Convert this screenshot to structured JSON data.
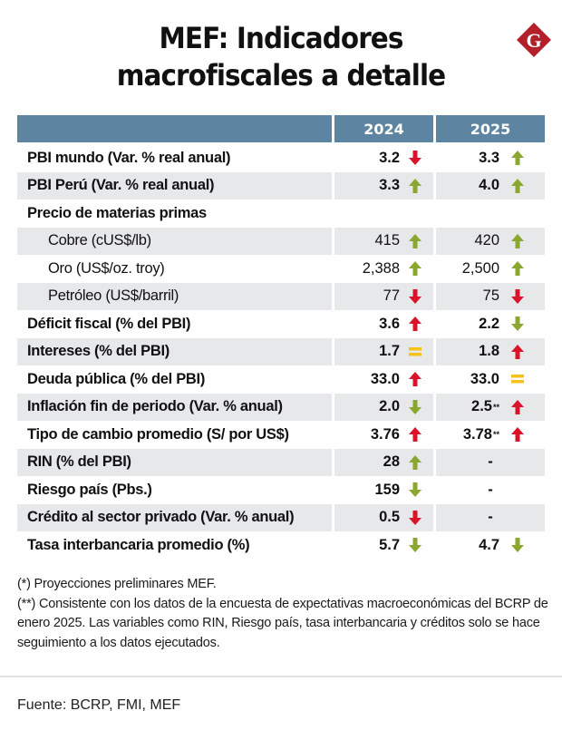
{
  "header": {
    "title_line1": "MEF: Indicadores",
    "title_line2": "macrofiscales a detalle",
    "logo_letter": "G",
    "logo_color": "#b3202a"
  },
  "table": {
    "columns": [
      "",
      "2024",
      "2025"
    ],
    "header_color": "#5d84a0",
    "rows": [
      {
        "label": "PBI mundo (Var. % real anual)",
        "v2024": "3.2",
        "t2024": "down",
        "v2025": "3.3",
        "t2025": "up",
        "sub": false
      },
      {
        "label": "PBI Perú (Var. % real anual)",
        "v2024": "3.3",
        "t2024": "up",
        "v2025": "4.0",
        "t2025": "up",
        "sub": false
      },
      {
        "label": "Precio de materias primas",
        "v2024": "",
        "t2024": "",
        "v2025": "",
        "t2025": "",
        "sub": false
      },
      {
        "label": "Cobre (cUS$/lb)",
        "v2024": "415",
        "t2024": "up",
        "v2025": "420",
        "t2025": "up",
        "sub": true
      },
      {
        "label": "Oro (US$/oz. troy)",
        "v2024": "2,388",
        "t2024": "up",
        "v2025": "2,500",
        "t2025": "up",
        "sub": true
      },
      {
        "label": "Petróleo (US$/barril)",
        "v2024": "77",
        "t2024": "down",
        "v2025": "75",
        "t2025": "down",
        "sub": true
      },
      {
        "label": "Déficit fiscal (% del PBI)",
        "v2024": "3.6",
        "t2024": "up-red",
        "v2025": "2.2",
        "t2025": "down-green",
        "sub": false
      },
      {
        "label": "Intereses (% del PBI)",
        "v2024": "1.7",
        "t2024": "equal",
        "v2025": "1.8",
        "t2025": "up-red",
        "sub": false
      },
      {
        "label": "Deuda pública (% del PBI)",
        "v2024": "33.0",
        "t2024": "up-red",
        "v2025": "33.0",
        "t2025": "equal",
        "sub": false
      },
      {
        "label": "Inflación fin de periodo (Var. % anual)",
        "v2024": "2.0",
        "t2024": "down-green",
        "v2025": "2.5",
        "n2025": "**",
        "t2025": "up-red",
        "sub": false
      },
      {
        "label": "Tipo de cambio promedio (S/ por US$)",
        "v2024": "3.76",
        "t2024": "up-red",
        "v2025": "3.78",
        "n2025": "**",
        "t2025": "up-red",
        "sub": false
      },
      {
        "label": "RIN (% del PBI)",
        "v2024": "28",
        "t2024": "up",
        "v2025": "-",
        "t2025": "",
        "sub": false
      },
      {
        "label": "Riesgo país (Pbs.)",
        "v2024": "159",
        "t2024": "down-green",
        "v2025": "-",
        "t2025": "",
        "sub": false
      },
      {
        "label": "Crédito al sector privado (Var. % anual)",
        "v2024": "0.5",
        "t2024": "down",
        "v2025": "-",
        "t2025": "",
        "sub": false
      },
      {
        "label": "Tasa interbancaria promedio (%)",
        "v2024": "5.7",
        "t2024": "down-green",
        "v2025": "4.7",
        "t2025": "down-green",
        "sub": false
      }
    ]
  },
  "colors": {
    "green": "#8aa830",
    "red": "#d9142a",
    "yellow": "#f6c21a"
  },
  "notes": {
    "note1": "(*) Proyecciones preliminares MEF.",
    "note2": "(**) Consistente con los datos de la encuesta de expectativas macroeconómicas del BCRP de enero 2025. Las variables como RIN, Riesgo país, tasa interbancaria y créditos solo se hace seguimiento a los datos ejecutados."
  },
  "source": "Fuente: BCRP, FMI, MEF"
}
